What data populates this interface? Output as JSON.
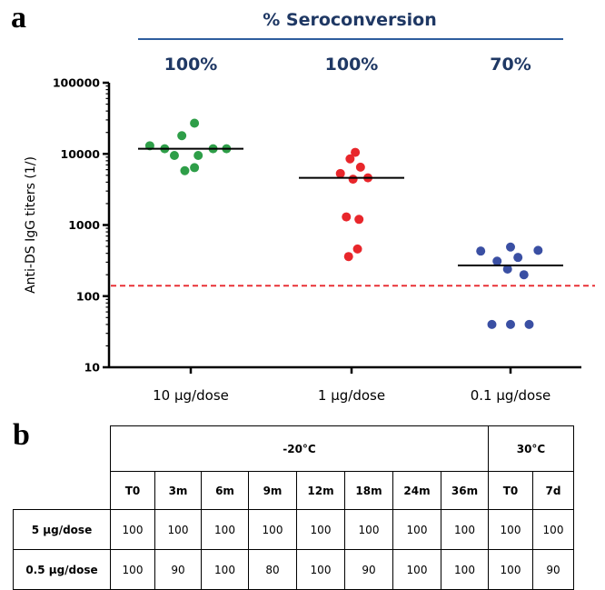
{
  "panel_a": {
    "letter": "a",
    "seroconversion_title": "% Seroconversion",
    "seroconversion_values": [
      "100%",
      "100%",
      "70%"
    ]
  },
  "chart_data": {
    "type": "scatter",
    "ylabel": "Anti-DS IgG titers (1/)",
    "xlabel": "",
    "yscale": "log",
    "ylim": [
      10,
      100000
    ],
    "yticks": [
      10,
      100,
      1000,
      10000,
      100000
    ],
    "ytick_labels": [
      "10",
      "100",
      "1000",
      "10000",
      "100000"
    ],
    "categories": [
      "10 µg/dose",
      "1 µg/dose",
      "0.1 µg/dose"
    ],
    "colors": [
      "#2e9e48",
      "#e8262b",
      "#3a4fa3"
    ],
    "reference_line": {
      "value": 140,
      "color": "#e8262b",
      "style": "dashed"
    },
    "groups": [
      {
        "category": "10 µg/dose",
        "median": 11800,
        "points": [
          {
            "offset": -0.55,
            "y": 13000
          },
          {
            "offset": -0.35,
            "y": 11800
          },
          {
            "offset": -0.12,
            "y": 18000
          },
          {
            "offset": 0.05,
            "y": 27000
          },
          {
            "offset": -0.22,
            "y": 9500
          },
          {
            "offset": 0.1,
            "y": 9500
          },
          {
            "offset": 0.3,
            "y": 11800
          },
          {
            "offset": 0.48,
            "y": 11800
          },
          {
            "offset": -0.08,
            "y": 5800
          },
          {
            "offset": 0.05,
            "y": 6400
          }
        ]
      },
      {
        "category": "1 µg/dose",
        "median": 4600,
        "points": [
          {
            "offset": 0.05,
            "y": 10500
          },
          {
            "offset": -0.02,
            "y": 8500
          },
          {
            "offset": 0.12,
            "y": 6500
          },
          {
            "offset": -0.15,
            "y": 5300
          },
          {
            "offset": 0.02,
            "y": 4400
          },
          {
            "offset": 0.22,
            "y": 4600
          },
          {
            "offset": -0.07,
            "y": 1300
          },
          {
            "offset": 0.1,
            "y": 1200
          },
          {
            "offset": 0.08,
            "y": 460
          },
          {
            "offset": -0.04,
            "y": 360
          }
        ]
      },
      {
        "category": "0.1 µg/dose",
        "median": 270,
        "points": [
          {
            "offset": -0.4,
            "y": 430
          },
          {
            "offset": 0.0,
            "y": 490
          },
          {
            "offset": 0.37,
            "y": 440
          },
          {
            "offset": 0.1,
            "y": 350
          },
          {
            "offset": -0.18,
            "y": 310
          },
          {
            "offset": -0.04,
            "y": 240
          },
          {
            "offset": 0.18,
            "y": 200
          },
          {
            "offset": -0.25,
            "y": 40
          },
          {
            "offset": 0.0,
            "y": 40
          },
          {
            "offset": 0.25,
            "y": 40
          }
        ]
      }
    ]
  },
  "panel_b": {
    "letter": "b",
    "group_headers": [
      {
        "label": "-20°C",
        "span": 8
      },
      {
        "label": "30°C",
        "span": 2
      }
    ],
    "timepoints": [
      "T0",
      "3m",
      "6m",
      "9m",
      "12m",
      "18m",
      "24m",
      "36m",
      "T0",
      "7d"
    ],
    "rows": [
      {
        "label": "5 µg/dose",
        "values": [
          "100",
          "100",
          "100",
          "100",
          "100",
          "100",
          "100",
          "100",
          "100",
          "100"
        ]
      },
      {
        "label": "0.5 µg/dose",
        "values": [
          "100",
          "90",
          "100",
          "80",
          "100",
          "90",
          "100",
          "100",
          "100",
          "90"
        ]
      }
    ]
  }
}
